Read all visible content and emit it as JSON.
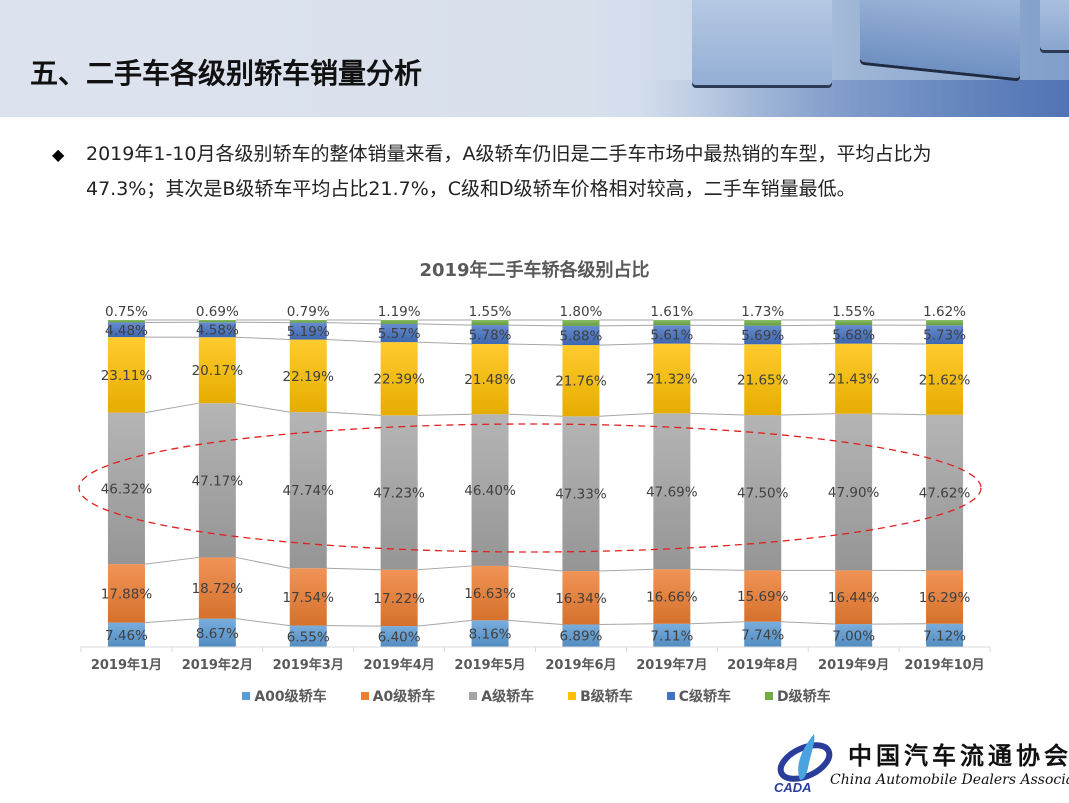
{
  "header": {
    "title": "五、二手车各级别轿车销量分析"
  },
  "summary": {
    "bullet_icon": "diamond-bullet-icon",
    "line1": "2019年1-10月各级别轿车的整体销量来看，A级轿车仍旧是二手车市场中最热销的车型，平均占比为",
    "line2": "47.3%；其次是B级轿车平均占比21.7%，C级和D级轿车价格相对较高，二手车销量最低。"
  },
  "chart_data": {
    "type": "bar",
    "stacked": "percent",
    "title": "2019年二手车轿各级别占比",
    "xlabel": "",
    "ylabel": "",
    "ylim": [
      0,
      100
    ],
    "grid": false,
    "legend_position": "bottom",
    "categories": [
      "2019年1月",
      "2019年2月",
      "2019年3月",
      "2019年4月",
      "2019年5月",
      "2019年6月",
      "2019年7月",
      "2019年8月",
      "2019年9月",
      "2019年10月"
    ],
    "series": [
      {
        "name": "A00级轿车",
        "color": "#5b9bd5",
        "values": [
          7.46,
          8.67,
          6.55,
          6.4,
          8.16,
          6.89,
          7.11,
          7.74,
          7.0,
          7.12
        ],
        "labels": [
          "7.46%",
          "8.67%",
          "6.55%",
          "6.40%",
          "8.16%",
          "6.89%",
          "7.11%",
          "7.74%",
          "7.00%",
          "7.12%"
        ]
      },
      {
        "name": "A0级轿车",
        "color": "#ed7d31",
        "values": [
          17.88,
          18.72,
          17.54,
          17.22,
          16.63,
          16.34,
          16.66,
          15.69,
          16.44,
          16.29
        ],
        "labels": [
          "17.88%",
          "18.72%",
          "17.54%",
          "17.22%",
          "16.63%",
          "16.34%",
          "16.66%",
          "15.69%",
          "16.44%",
          "16.29%"
        ]
      },
      {
        "name": "A级轿车",
        "color": "#a5a5a5",
        "values": [
          46.32,
          47.17,
          47.74,
          47.23,
          46.4,
          47.33,
          47.69,
          47.5,
          47.9,
          47.62
        ],
        "labels": [
          "46.32%",
          "47.17%",
          "47.74%",
          "47.23%",
          "46.40%",
          "47.33%",
          "47.69%",
          "47.50%",
          "47.90%",
          "47.62%"
        ]
      },
      {
        "name": "B级轿车",
        "color": "#ffc000",
        "values": [
          23.11,
          20.17,
          22.19,
          22.39,
          21.48,
          21.76,
          21.32,
          21.65,
          21.43,
          21.62
        ],
        "labels": [
          "23.11%",
          "20.17%",
          "22.19%",
          "22.39%",
          "21.48%",
          "21.76%",
          "21.32%",
          "21.65%",
          "21.43%",
          "21.62%"
        ]
      },
      {
        "name": "C级轿车",
        "color": "#4472c4",
        "values": [
          4.48,
          4.58,
          5.19,
          5.57,
          5.78,
          5.88,
          5.61,
          5.69,
          5.68,
          5.73
        ],
        "labels": [
          "4.48%",
          "4.58%",
          "5.19%",
          "5.57%",
          "5.78%",
          "5.88%",
          "5.61%",
          "5.69%",
          "5.68%",
          "5.73%"
        ]
      },
      {
        "name": "D级轿车",
        "color": "#70ad47",
        "values": [
          0.75,
          0.69,
          0.79,
          1.19,
          1.55,
          1.8,
          1.61,
          1.73,
          1.55,
          1.62
        ],
        "labels": [
          "0.75%",
          "0.69%",
          "0.79%",
          "1.19%",
          "1.55%",
          "1.80%",
          "1.61%",
          "1.73%",
          "1.55%",
          "1.62%"
        ]
      }
    ],
    "annotations": [
      {
        "type": "dashed-ellipse",
        "color": "#e02020",
        "highlights_series": "A级轿车"
      }
    ]
  },
  "logo": {
    "chinese_name": "中国汽车流通协会",
    "english_name": "China Automobile Dealers Association",
    "abbreviation": "CADA"
  }
}
